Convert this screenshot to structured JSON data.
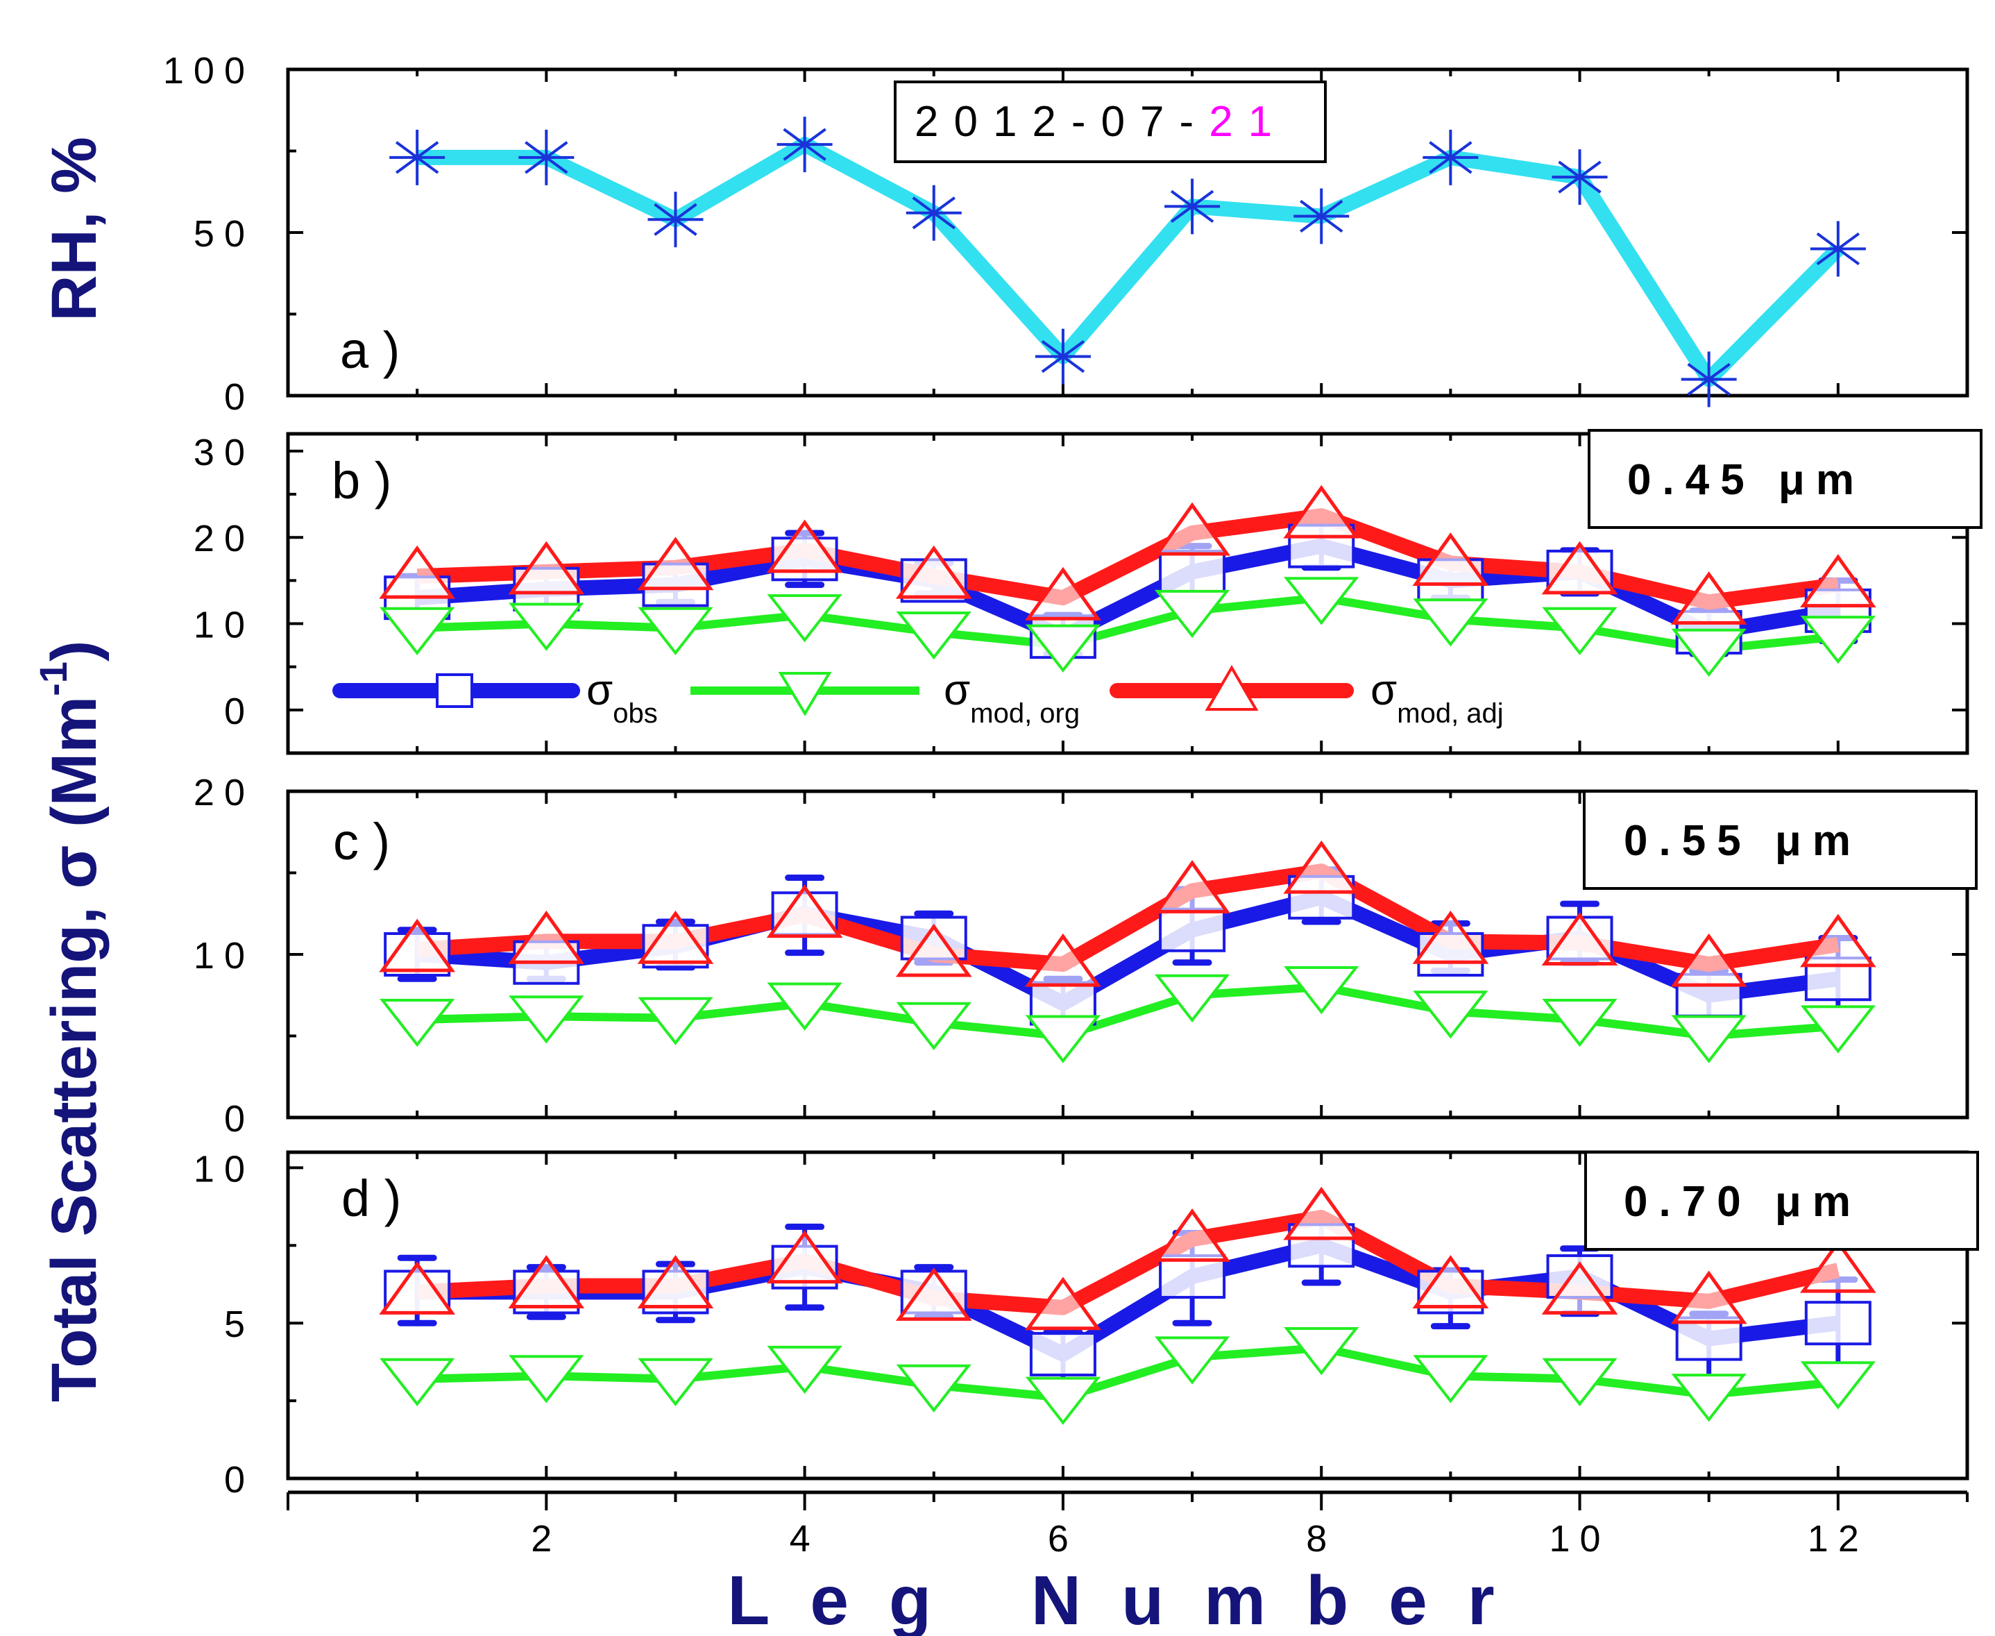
{
  "figure": {
    "date_prefix": "2012-07-",
    "date_day": "21",
    "xlabel": "Leg Number",
    "ylabel_top": "RH, %",
    "ylabel_bottom": "Total Scattering, σ (Mm",
    "ylabel_sup": "-1",
    "ylabel_close": ")",
    "colors": {
      "axis": "#000000",
      "label": "#14147a",
      "rh": "#33e0f0",
      "rh_marker": "#1a33d9",
      "obs": "#1a1ae6",
      "mod_org": "#22ee22",
      "mod_adj": "#ff1a1a",
      "date_day": "#ff00ff"
    }
  },
  "legend": {
    "obs": {
      "symbol": "σ",
      "sub": "obs"
    },
    "mod_org": {
      "symbol": "σ",
      "sub": "mod, org"
    },
    "mod_adj": {
      "symbol": "σ",
      "sub": "mod, adj"
    }
  },
  "chart_data": [
    {
      "type": "line",
      "panel": "a )",
      "ylabel": "RH, %",
      "x": [
        1,
        2,
        3,
        4,
        5,
        6,
        7,
        8,
        9,
        10,
        11,
        12
      ],
      "xlim": [
        0,
        13
      ],
      "ylim": [
        0,
        100
      ],
      "yticks": [
        0,
        50,
        100
      ],
      "ytick_labels": [
        "0",
        "50",
        "100"
      ],
      "series": [
        {
          "name": "RH",
          "values": [
            73,
            73,
            54,
            77,
            56,
            12,
            58,
            55,
            73,
            67,
            5,
            45
          ]
        }
      ]
    },
    {
      "type": "line",
      "panel": "b )",
      "wavelength": "0.45 μm",
      "x": [
        1,
        2,
        3,
        4,
        5,
        6,
        7,
        8,
        9,
        10,
        11,
        12
      ],
      "xlim": [
        0,
        13
      ],
      "ylim": [
        -5,
        32
      ],
      "yticks": [
        0,
        10,
        20,
        30
      ],
      "ytick_labels": [
        "0",
        "10",
        "20",
        "30"
      ],
      "series": [
        {
          "name": "σ obs",
          "values": [
            13,
            14,
            14.5,
            17.5,
            15,
            8.5,
            16,
            19,
            15,
            16,
            9,
            11.5
          ],
          "err_low": [
            11,
            12,
            12.5,
            14.5,
            13.5,
            6.5,
            12.5,
            16.5,
            13,
            13.5,
            6.5,
            8
          ],
          "err_high": [
            15.5,
            16,
            16.5,
            20.5,
            17,
            11,
            19,
            21.5,
            17,
            18.5,
            11.5,
            15
          ]
        },
        {
          "name": "σ mod, org",
          "values": [
            9.5,
            10,
            9.5,
            11,
            9,
            7.5,
            11.5,
            13,
            10.5,
            9.5,
            7,
            8.5
          ]
        },
        {
          "name": "σ mod, adj",
          "values": [
            15.5,
            16,
            16.5,
            18.5,
            15.5,
            13,
            20.5,
            22.5,
            17,
            16,
            12.5,
            14.5
          ]
        }
      ]
    },
    {
      "type": "line",
      "panel": "c )",
      "wavelength": "0.55 μm",
      "x": [
        1,
        2,
        3,
        4,
        5,
        6,
        7,
        8,
        9,
        10,
        11,
        12
      ],
      "xlim": [
        0,
        13
      ],
      "ylim": [
        0,
        20
      ],
      "yticks": [
        0,
        10,
        20
      ],
      "ytick_labels": [
        "0",
        "10",
        "20"
      ],
      "series": [
        {
          "name": "σ obs",
          "values": [
            10,
            9.5,
            10.5,
            12.5,
            11,
            7,
            11.5,
            13.5,
            10,
            11,
            7.5,
            8.5
          ],
          "err_low": [
            8.5,
            8.5,
            9.2,
            10.1,
            9.5,
            5.4,
            9.5,
            12,
            9,
            9.5,
            5.5,
            6
          ],
          "err_high": [
            11.5,
            10.8,
            12,
            14.7,
            12.5,
            8.5,
            14,
            15.2,
            11.9,
            13.1,
            9,
            11
          ]
        },
        {
          "name": "σ mod, org",
          "values": [
            6,
            6.2,
            6.1,
            7,
            5.8,
            5,
            7.5,
            8,
            6.5,
            6,
            5,
            5.6
          ]
        },
        {
          "name": "σ mod, adj",
          "values": [
            10.3,
            10.8,
            10.8,
            12.4,
            10,
            9.4,
            13.9,
            15.1,
            10.8,
            10.7,
            9.4,
            10.6
          ]
        }
      ]
    },
    {
      "type": "line",
      "panel": "d )",
      "wavelength": "0.70 μm",
      "x": [
        1,
        2,
        3,
        4,
        5,
        6,
        7,
        8,
        9,
        10,
        11,
        12
      ],
      "xlim": [
        0,
        13
      ],
      "ylim": [
        0,
        10.5
      ],
      "yticks": [
        0,
        5,
        10
      ],
      "ytick_labels": [
        "0",
        "5",
        "10"
      ],
      "xticks": [
        2,
        4,
        6,
        8,
        10,
        12
      ],
      "xtick_labels": [
        "2",
        "4",
        "6",
        "8",
        "10",
        "12"
      ],
      "series": [
        {
          "name": "σ obs",
          "values": [
            6,
            6,
            6,
            6.8,
            6,
            4,
            6.5,
            7.5,
            6,
            6.5,
            4.5,
            5
          ],
          "err_low": [
            5,
            5.2,
            5.1,
            5.5,
            5.2,
            3,
            5,
            6.3,
            4.9,
            5.3,
            3.1,
            3.4
          ],
          "err_high": [
            7.1,
            6.8,
            6.9,
            8.1,
            6.8,
            4.7,
            7.9,
            8.3,
            6.7,
            7.4,
            5.3,
            6.4
          ]
        },
        {
          "name": "σ mod, org",
          "values": [
            3.2,
            3.3,
            3.2,
            3.6,
            3,
            2.6,
            3.9,
            4.2,
            3.3,
            3.2,
            2.7,
            3.1
          ]
        },
        {
          "name": "σ mod, adj",
          "values": [
            6,
            6.2,
            6.2,
            7,
            5.8,
            5.5,
            7.7,
            8.4,
            6.2,
            6,
            5.7,
            6.7
          ]
        }
      ]
    }
  ]
}
